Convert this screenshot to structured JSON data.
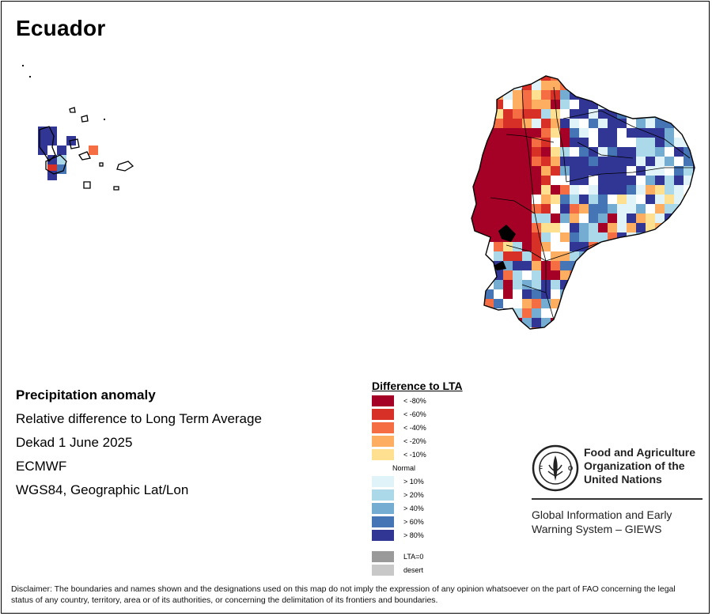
{
  "title": "Ecuador",
  "info": {
    "heading": "Precipitation anomaly",
    "line1": "Relative difference to Long Term Average",
    "line2": "Dekad 1 June 2025",
    "line3": "ECMWF",
    "line4": "WGS84, Geographic Lat/Lon"
  },
  "legend": {
    "title": "Difference to LTA",
    "items": [
      {
        "label": "< -80%",
        "color": "#a50026"
      },
      {
        "label": "< -60%",
        "color": "#d73027"
      },
      {
        "label": "< -40%",
        "color": "#f46d43"
      },
      {
        "label": "< -20%",
        "color": "#fdae61"
      },
      {
        "label": "< -10%",
        "color": "#fee090"
      },
      {
        "label": "Normal",
        "color": "#ffffff"
      },
      {
        "label": "> 10%",
        "color": "#e0f3f8"
      },
      {
        "label": "> 20%",
        "color": "#abd9e9"
      },
      {
        "label": "> 40%",
        "color": "#74add1"
      },
      {
        "label": "> 60%",
        "color": "#4575b4"
      },
      {
        "label": "> 80%",
        "color": "#313695"
      }
    ],
    "extra": [
      {
        "label": "LTA=0",
        "color": "#9a9a9a"
      },
      {
        "label": "desert",
        "color": "#c8c8c8"
      }
    ]
  },
  "org": {
    "name_line1": "Food and Agriculture",
    "name_line2": "Organization of the",
    "name_line3": "United Nations",
    "system_line1": "Global Information and Early",
    "system_line2": "Warning System – GIEWS",
    "logo_icon": "fao-logo-icon"
  },
  "disclaimer": "Disclaimer: The boundaries and names shown and the designations used on this map do not imply the expression of any opinion whatsoever on the part of FAO concerning the legal status of any country, territory, area or of its authorities, or concerning the delimitation of its frontiers and boundaries."
}
